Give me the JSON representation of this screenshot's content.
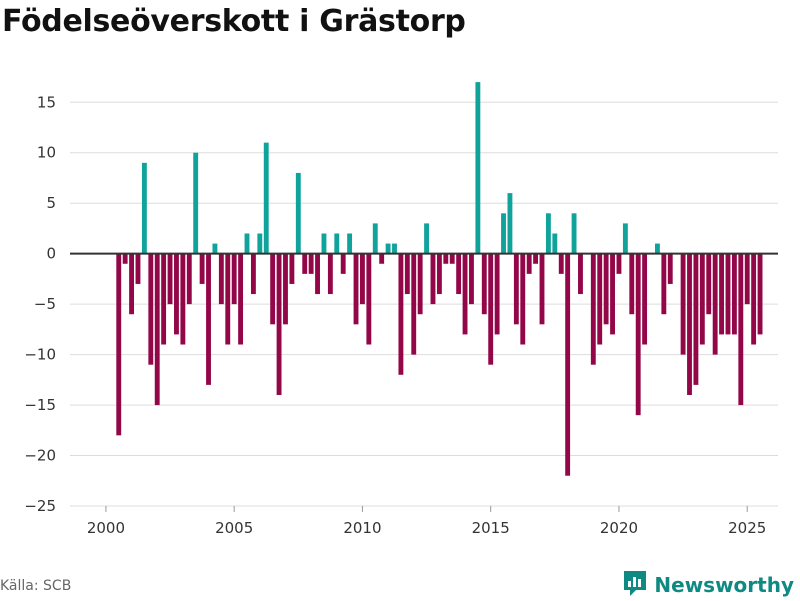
{
  "header": {
    "title": "Födelseöverskott i Grästorp"
  },
  "footer": {
    "source": "Källa: SCB",
    "brand": "Newsworthy"
  },
  "colors": {
    "positive": "#0fa39b",
    "negative": "#930749",
    "grid": "#dddddd",
    "zero": "#333333",
    "brand": "#0f8a82"
  },
  "chart_data": {
    "type": "bar",
    "title": "Födelseöverskott i Grästorp",
    "xlabel": "",
    "ylabel": "",
    "xlim": [
      1998.6,
      2026.2
    ],
    "ylim": [
      -25,
      18
    ],
    "yticks": [
      15,
      10,
      5,
      0,
      -5,
      -10,
      -15,
      -20,
      -25
    ],
    "ytick_labels": [
      "15",
      "10",
      "5",
      "0",
      "−5",
      "−10",
      "−15",
      "−20",
      "−25"
    ],
    "xticks": [
      2000,
      2005,
      2010,
      2015,
      2020,
      2025
    ],
    "xtick_labels": [
      "2000",
      "2005",
      "2010",
      "2015",
      "2020",
      "2025"
    ],
    "bar_width_years": 0.19,
    "series": [
      {
        "name": "Födelseöverskott",
        "period": "quarterly",
        "start": 2000.5,
        "step": 0.25,
        "values": [
          -18,
          -1,
          -6,
          -3,
          9,
          -11,
          -15,
          -9,
          -5,
          -8,
          -9,
          -5,
          10,
          -3,
          -13,
          1,
          -5,
          -9,
          -5,
          -9,
          2,
          -4,
          2,
          11,
          -7,
          -14,
          -7,
          -3,
          8,
          -2,
          -2,
          -4,
          2,
          -4,
          2,
          -2,
          2,
          -7,
          -5,
          -9,
          3,
          -1,
          1,
          1,
          -12,
          -4,
          -10,
          -6,
          3,
          -5,
          -4,
          -1,
          -1,
          -4,
          -8,
          -5,
          17,
          -6,
          -11,
          -8,
          4,
          6,
          -7,
          -9,
          -2,
          -1,
          -7,
          4,
          2,
          -2,
          -22,
          4,
          -4,
          0,
          -11,
          -9,
          -7,
          -8,
          -2,
          3,
          -6,
          -16,
          -9,
          0,
          1,
          -6,
          -3,
          0,
          -10,
          -14,
          -13,
          -9,
          -6,
          -10,
          -8,
          -8,
          -8,
          -15,
          -5,
          -9,
          -8
        ]
      }
    ]
  }
}
